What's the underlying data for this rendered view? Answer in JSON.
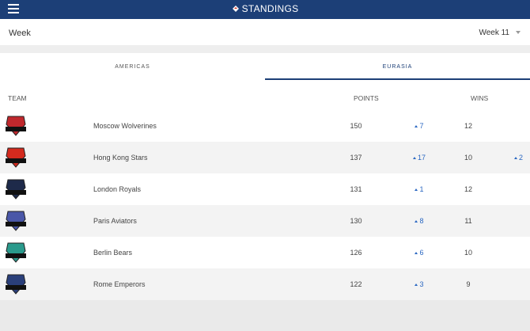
{
  "header": {
    "title": "STANDINGS"
  },
  "week": {
    "label": "Week",
    "selected": "Week 11"
  },
  "tabs": [
    {
      "label": "AMERICAS",
      "active": false
    },
    {
      "label": "EURASIA",
      "active": true
    }
  ],
  "columns": {
    "team": "TEAM",
    "points": "POINTS",
    "wins": "WINS"
  },
  "teams": [
    {
      "name": "Moscow Wolverines",
      "points": "150",
      "points_change": "7",
      "wins": "12",
      "wins_change": "",
      "logo_color": "#c0282d",
      "logo_text": "WOLVERINES"
    },
    {
      "name": "Hong Kong Stars",
      "points": "137",
      "points_change": "17",
      "wins": "10",
      "wins_change": "2",
      "logo_color": "#d32a1e",
      "logo_text": "STARS"
    },
    {
      "name": "London Royals",
      "points": "131",
      "points_change": "1",
      "wins": "12",
      "wins_change": "",
      "logo_color": "#1e2a4a",
      "logo_text": "ROYALS"
    },
    {
      "name": "Paris Aviators",
      "points": "130",
      "points_change": "8",
      "wins": "11",
      "wins_change": "",
      "logo_color": "#4a57a8",
      "logo_text": "AVIATORS"
    },
    {
      "name": "Berlin Bears",
      "points": "126",
      "points_change": "6",
      "wins": "10",
      "wins_change": "",
      "logo_color": "#2a9a8c",
      "logo_text": "BEARS"
    },
    {
      "name": "Rome Emperors",
      "points": "122",
      "points_change": "3",
      "wins": "9",
      "wins_change": "",
      "logo_color": "#2a3f7a",
      "logo_text": "EMPERORS"
    }
  ],
  "colors": {
    "header_bg": "#1c3f77",
    "accent": "#2a67c2"
  }
}
